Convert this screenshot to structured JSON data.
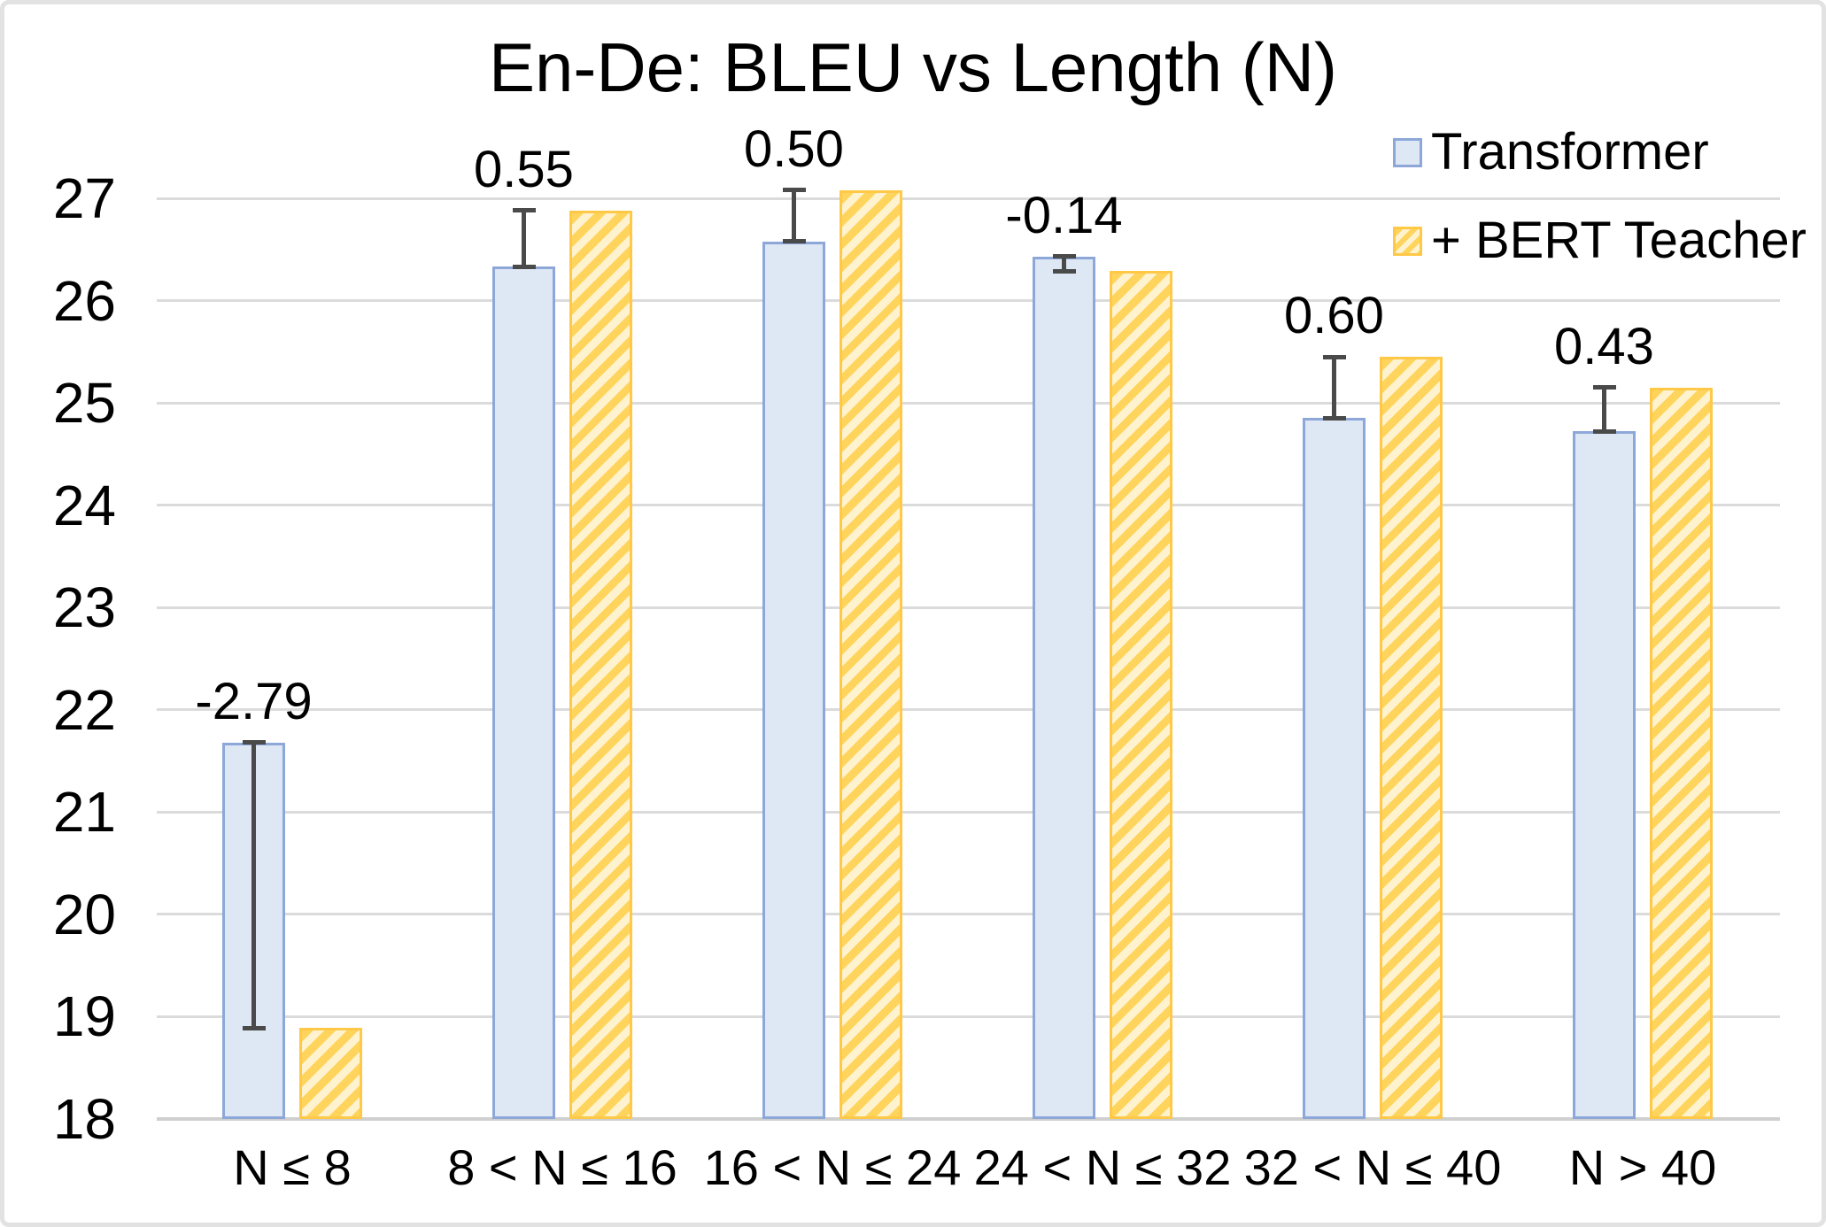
{
  "frame": {
    "background": "#FFFFFF",
    "border_color": "#E2E2E2"
  },
  "chart_data": {
    "type": "bar",
    "title": "En-De: BLEU vs Length (N)",
    "categories": [
      "N ≤ 8",
      "8 < N ≤ 16",
      "16 < N ≤ 24",
      "24 < N ≤ 32",
      "32 < N ≤ 40",
      "N > 40"
    ],
    "series": [
      {
        "name": "Transformer",
        "values": [
          21.68,
          26.33,
          26.58,
          26.43,
          24.85,
          24.72
        ],
        "style": "solid",
        "fill_color": "#DEE7F4",
        "border_color": "#8DA8D8"
      },
      {
        "name": "+ BERT Teacher",
        "values": [
          18.89,
          26.88,
          27.08,
          26.29,
          25.45,
          25.15
        ],
        "style": "hatched",
        "fill_color": "#FFF3CF",
        "stripe_color": "#FFD45C",
        "border_color": "#FFC846"
      }
    ],
    "delta_labels": [
      "-2.79",
      "0.55",
      "0.50",
      "-0.14",
      "0.60",
      "0.43"
    ],
    "error_bars": {
      "attached_to": "Transformer",
      "deltas": [
        -2.79,
        0.55,
        0.5,
        -0.14,
        0.6,
        0.43
      ],
      "color": "#4A4A4A"
    },
    "xlabel": "",
    "ylabel": "",
    "ylim": [
      18,
      27
    ],
    "yticks": [
      18,
      19,
      20,
      21,
      22,
      23,
      24,
      25,
      26,
      27
    ],
    "grid": true,
    "gridline_color": "#DBDBDB",
    "legend_position": "top-right"
  },
  "legend": {
    "items": [
      {
        "label": "Transformer",
        "swatch": "solid-blue-square"
      },
      {
        "label": "+ BERT Teacher",
        "swatch": "hatched-gold-square"
      }
    ]
  }
}
